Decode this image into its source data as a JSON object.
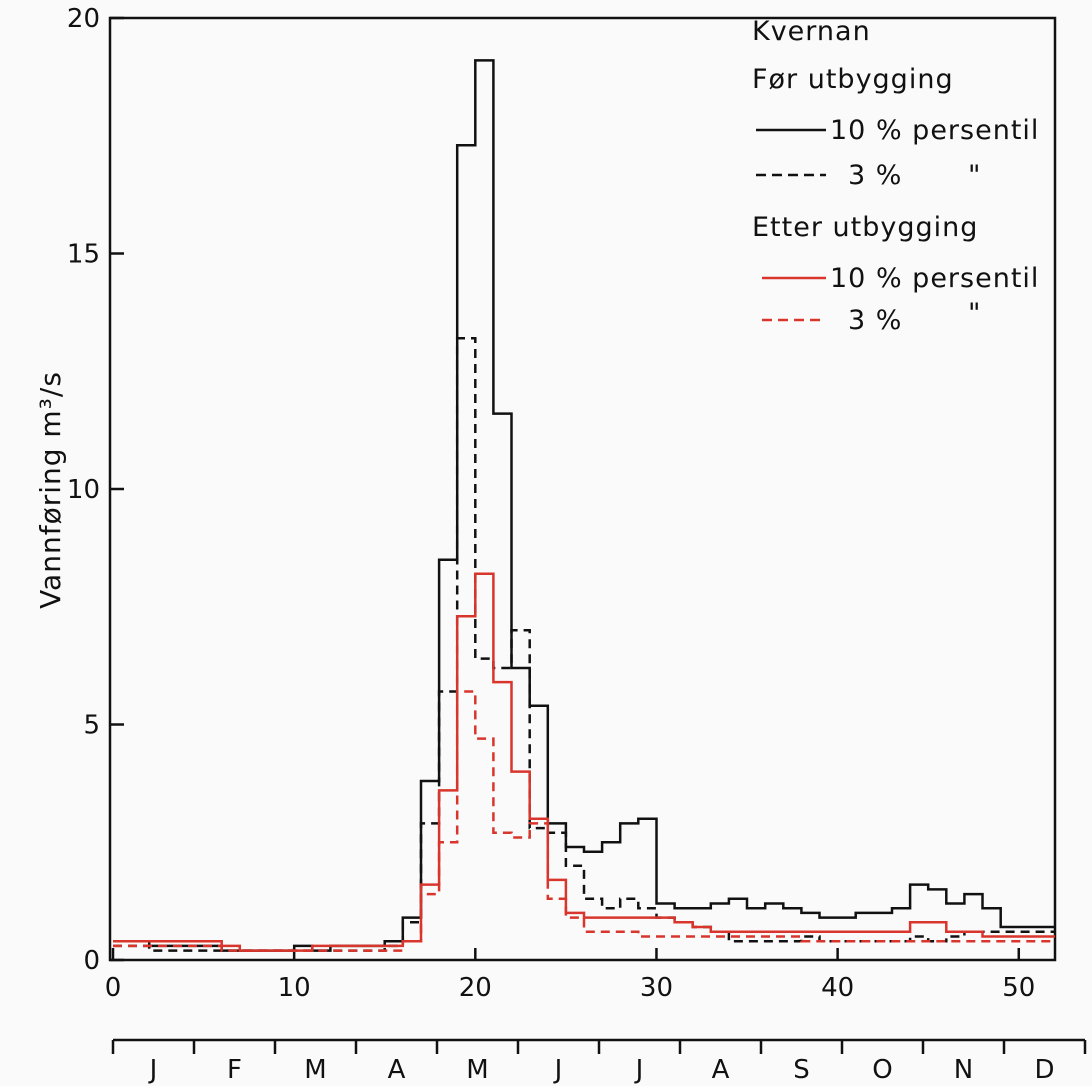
{
  "chart_data": {
    "type": "line",
    "step": true,
    "xlabel": "",
    "ylabel": "Vannføring  m³/s",
    "xlim": [
      0,
      52
    ],
    "ylim": [
      0,
      20
    ],
    "xticks": [
      0,
      10,
      20,
      30,
      40,
      50
    ],
    "yticks": [
      0,
      5,
      10,
      15,
      20
    ],
    "months": [
      "J",
      "F",
      "M",
      "A",
      "M",
      "J",
      "J",
      "A",
      "S",
      "O",
      "N",
      "D"
    ],
    "legend": {
      "title": "Kvernan",
      "group1": "Før utbygging",
      "group2": "Etter utbygging",
      "item_10": "10 % persentil",
      "item_3": "3 %",
      "ditto": "\""
    },
    "series": [
      {
        "name": "Før utbygging 10 % persentil",
        "color": "#111111",
        "dash": false,
        "values": [
          0.4,
          0.4,
          0.3,
          0.3,
          0.3,
          0.3,
          0.2,
          0.2,
          0.2,
          0.2,
          0.3,
          0.2,
          0.3,
          0.3,
          0.3,
          0.4,
          0.9,
          3.8,
          8.5,
          17.3,
          19.1,
          11.6,
          6.2,
          5.4,
          2.9,
          2.4,
          2.3,
          2.5,
          2.9,
          3.0,
          1.2,
          1.1,
          1.1,
          1.2,
          1.3,
          1.1,
          1.2,
          1.1,
          1.0,
          0.9,
          0.9,
          1.0,
          1.0,
          1.1,
          1.6,
          1.5,
          1.2,
          1.4,
          1.1,
          0.7,
          0.7,
          0.7
        ]
      },
      {
        "name": "Før utbygging 3 %",
        "color": "#111111",
        "dash": true,
        "values": [
          0.3,
          0.3,
          0.2,
          0.2,
          0.2,
          0.2,
          0.2,
          0.2,
          0.2,
          0.2,
          0.2,
          0.2,
          0.2,
          0.2,
          0.2,
          0.3,
          0.8,
          2.9,
          5.7,
          13.2,
          6.4,
          6.2,
          7.0,
          2.8,
          2.7,
          2.0,
          1.3,
          1.1,
          1.3,
          1.1,
          0.9,
          0.8,
          0.7,
          0.6,
          0.4,
          0.4,
          0.4,
          0.4,
          0.5,
          0.4,
          0.4,
          0.4,
          0.4,
          0.4,
          0.5,
          0.4,
          0.5,
          0.6,
          0.6,
          0.6,
          0.6,
          0.6
        ]
      },
      {
        "name": "Etter utbygging 10 % persentil",
        "color": "#d8362c",
        "dash": false,
        "values": [
          0.4,
          0.4,
          0.4,
          0.4,
          0.4,
          0.4,
          0.3,
          0.2,
          0.2,
          0.2,
          0.2,
          0.3,
          0.3,
          0.3,
          0.3,
          0.3,
          0.4,
          1.6,
          3.6,
          7.3,
          8.2,
          5.9,
          4.0,
          3.0,
          1.7,
          1.0,
          0.9,
          0.9,
          0.9,
          0.9,
          0.9,
          0.8,
          0.7,
          0.6,
          0.6,
          0.6,
          0.6,
          0.6,
          0.6,
          0.6,
          0.6,
          0.6,
          0.6,
          0.6,
          0.8,
          0.8,
          0.6,
          0.6,
          0.5,
          0.5,
          0.5,
          0.5
        ]
      },
      {
        "name": "Etter utbygging 3 %",
        "color": "#d8362c",
        "dash": true,
        "values": [
          0.3,
          0.3,
          0.3,
          0.3,
          0.3,
          0.3,
          0.2,
          0.2,
          0.2,
          0.2,
          0.2,
          0.2,
          0.2,
          0.2,
          0.2,
          0.2,
          0.4,
          1.4,
          2.5,
          5.7,
          4.7,
          2.7,
          2.6,
          2.9,
          1.3,
          0.9,
          0.6,
          0.6,
          0.6,
          0.5,
          0.5,
          0.5,
          0.5,
          0.5,
          0.5,
          0.5,
          0.5,
          0.5,
          0.4,
          0.4,
          0.4,
          0.4,
          0.4,
          0.4,
          0.4,
          0.4,
          0.4,
          0.4,
          0.4,
          0.4,
          0.4,
          0.4
        ]
      }
    ]
  }
}
